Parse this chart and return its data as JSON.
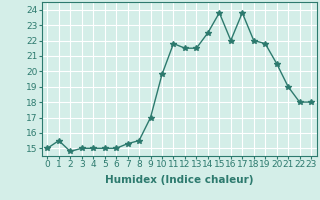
{
  "x": [
    0,
    1,
    2,
    3,
    4,
    5,
    6,
    7,
    8,
    9,
    10,
    11,
    12,
    13,
    14,
    15,
    16,
    17,
    18,
    19,
    20,
    21,
    22,
    23
  ],
  "y": [
    15.0,
    15.5,
    14.8,
    15.0,
    15.0,
    15.0,
    15.0,
    15.3,
    15.5,
    17.0,
    19.8,
    21.8,
    21.5,
    21.5,
    22.5,
    23.8,
    22.0,
    23.8,
    22.0,
    21.8,
    20.5,
    19.0,
    18.0,
    18.0
  ],
  "line_color": "#2d7a6e",
  "marker": "*",
  "marker_size": 4,
  "bg_color": "#d4eee8",
  "grid_color": "#ffffff",
  "xlabel": "Humidex (Indice chaleur)",
  "xlim": [
    -0.5,
    23.5
  ],
  "ylim": [
    14.5,
    24.5
  ],
  "yticks": [
    15,
    16,
    17,
    18,
    19,
    20,
    21,
    22,
    23,
    24
  ],
  "xticks": [
    0,
    1,
    2,
    3,
    4,
    5,
    6,
    7,
    8,
    9,
    10,
    11,
    12,
    13,
    14,
    15,
    16,
    17,
    18,
    19,
    20,
    21,
    22,
    23
  ],
  "xtick_labels": [
    "0",
    "1",
    "2",
    "3",
    "4",
    "5",
    "6",
    "7",
    "8",
    "9",
    "10",
    "11",
    "12",
    "13",
    "14",
    "15",
    "16",
    "17",
    "18",
    "19",
    "20",
    "21",
    "22",
    "23"
  ],
  "xlabel_fontsize": 7.5,
  "tick_fontsize": 6.5,
  "linewidth": 1.0
}
